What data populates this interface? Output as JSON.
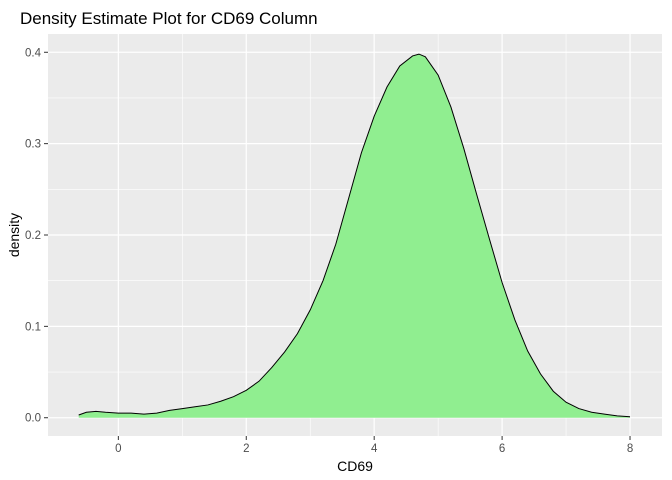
{
  "chart_data": {
    "type": "area",
    "title": "Density Estimate Plot for CD69 Column",
    "xlabel": "CD69",
    "ylabel": "density",
    "xlim": [
      -1.1,
      8.5
    ],
    "ylim": [
      -0.02,
      0.42
    ],
    "x_ticks": [
      0,
      2,
      4,
      6,
      8
    ],
    "y_ticks": [
      0.0,
      0.1,
      0.2,
      0.3,
      0.4
    ],
    "y_tick_labels": [
      "0.0",
      "0.1",
      "0.2",
      "0.3",
      "0.4"
    ],
    "grid": true,
    "legend": "none",
    "fill_color": "#90EE90",
    "line_color": "#000000",
    "panel_background": "#EBEBEB",
    "series": [
      {
        "x": [
          -0.62,
          -0.5,
          -0.35,
          -0.2,
          0.0,
          0.2,
          0.4,
          0.6,
          0.8,
          1.0,
          1.2,
          1.4,
          1.6,
          1.8,
          2.0,
          2.2,
          2.4,
          2.6,
          2.8,
          3.0,
          3.2,
          3.4,
          3.6,
          3.8,
          4.0,
          4.2,
          4.4,
          4.6,
          4.7,
          4.8,
          5.0,
          5.2,
          5.4,
          5.6,
          5.8,
          6.0,
          6.2,
          6.4,
          6.6,
          6.8,
          7.0,
          7.2,
          7.4,
          7.6,
          7.8,
          8.0
        ],
        "y": [
          0.003,
          0.006,
          0.007,
          0.006,
          0.005,
          0.005,
          0.004,
          0.005,
          0.008,
          0.01,
          0.012,
          0.014,
          0.018,
          0.023,
          0.03,
          0.04,
          0.055,
          0.072,
          0.092,
          0.118,
          0.15,
          0.19,
          0.24,
          0.29,
          0.33,
          0.362,
          0.385,
          0.396,
          0.398,
          0.395,
          0.375,
          0.34,
          0.295,
          0.245,
          0.196,
          0.148,
          0.107,
          0.073,
          0.048,
          0.029,
          0.017,
          0.01,
          0.006,
          0.004,
          0.002,
          0.001
        ]
      }
    ]
  }
}
